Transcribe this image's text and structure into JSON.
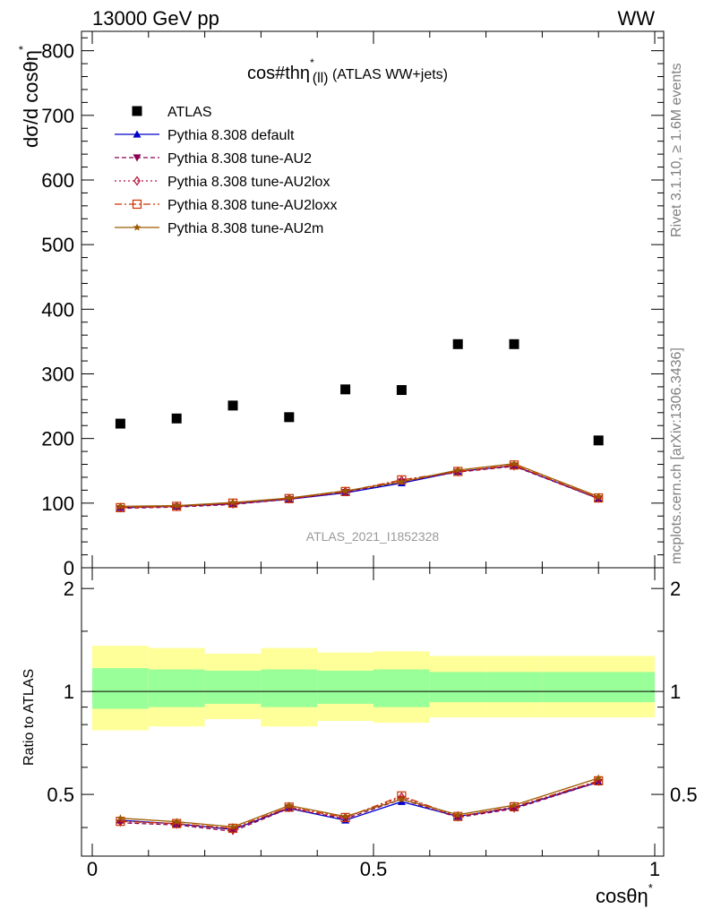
{
  "header": {
    "left": "13000 GeV pp",
    "right": "WW"
  },
  "side_labels": {
    "rivet": "Rivet 3.1.10, ≥ 1.6M events",
    "mcplots": "mcplots.cern.ch [arXiv:1306.3436]"
  },
  "chart_data": [
    {
      "type": "scatter",
      "panel": "main",
      "title": "cos#thη* (ll) (ATLAS WW+jets)",
      "title_main": "cos#thη",
      "title_sup": "*",
      "title_sub": "(ll)",
      "title_rest": " (ATLAS WW+jets)",
      "ylabel": "dσ/d cosθη*",
      "ylabel_main": "dσ/d cosθη",
      "ylabel_sup": "*",
      "watermark": "ATLAS_2021_I1852328",
      "xlim": [
        0,
        1
      ],
      "ylim": [
        0,
        830
      ],
      "yticks": [
        0,
        100,
        200,
        300,
        400,
        500,
        600,
        700,
        800
      ],
      "ytick_labels": [
        "0",
        "100",
        "200",
        "300",
        "400",
        "500",
        "600",
        "700",
        "800"
      ],
      "legend_position": "top-left",
      "bins": [
        [
          0,
          0.1
        ],
        [
          0.1,
          0.2
        ],
        [
          0.2,
          0.3
        ],
        [
          0.3,
          0.4
        ],
        [
          0.4,
          0.5
        ],
        [
          0.5,
          0.6
        ],
        [
          0.6,
          0.7
        ],
        [
          0.7,
          0.8
        ],
        [
          0.8,
          1.0
        ]
      ],
      "x": [
        0.05,
        0.15,
        0.25,
        0.35,
        0.45,
        0.55,
        0.65,
        0.75,
        0.9
      ],
      "series": [
        {
          "name": "ATLAS",
          "color": "#000000",
          "marker": "square",
          "dash": "",
          "values": [
            223,
            231,
            251,
            233,
            276,
            275,
            346,
            346,
            197
          ]
        },
        {
          "name": "Pythia 8.308 default",
          "color": "#0000cc",
          "marker": "triangle-up",
          "dash": "",
          "values": [
            93,
            95,
            99,
            106,
            116,
            131,
            149,
            158,
            107
          ]
        },
        {
          "name": "Pythia 8.308 tune-AU2",
          "color": "#8b0050",
          "marker": "triangle-down",
          "dash": "5,3",
          "values": [
            92,
            94,
            98,
            106,
            117,
            133,
            148,
            157,
            107
          ]
        },
        {
          "name": "Pythia 8.308 tune-AU2lox",
          "color": "#b0103a",
          "marker": "diamond-open",
          "dash": "2,3",
          "values": [
            93,
            95,
            99,
            107,
            118,
            135,
            149,
            158,
            108
          ]
        },
        {
          "name": "Pythia 8.308 tune-AU2loxx",
          "color": "#cc3300",
          "marker": "square-open",
          "dash": "8,3,2,3",
          "values": [
            93,
            95,
            100,
            107,
            118,
            136,
            149,
            159,
            108
          ]
        },
        {
          "name": "Pythia 8.308 tune-AU2m",
          "color": "#9c5a00",
          "marker": "star",
          "dash": "",
          "values": [
            95,
            96,
            101,
            108,
            119,
            133,
            151,
            161,
            110
          ]
        }
      ]
    },
    {
      "type": "line",
      "panel": "ratio",
      "ylabel": "Ratio to ATLAS",
      "xlabel": "cosθη*",
      "xlabel_main": "cosθη",
      "xlabel_sup": "*",
      "xlim": [
        0,
        1
      ],
      "ylim": [
        0.33,
        2.3
      ],
      "yticks": [
        0.5,
        1,
        2
      ],
      "ytick_labels": [
        "0.5",
        "1",
        "2"
      ],
      "xticks": [
        0,
        0.5,
        1
      ],
      "xtick_labels": [
        "0",
        "0.5",
        "1"
      ],
      "band_colors": {
        "inner": "#99ff99",
        "outer": "#ffff99"
      },
      "bands": {
        "inner_lo": [
          0.89,
          0.9,
          0.92,
          0.9,
          0.92,
          0.9,
          0.93,
          0.93,
          0.93
        ],
        "inner_hi": [
          1.17,
          1.16,
          1.15,
          1.16,
          1.15,
          1.16,
          1.14,
          1.14,
          1.14
        ],
        "outer_lo": [
          0.77,
          0.79,
          0.83,
          0.79,
          0.82,
          0.81,
          0.84,
          0.84,
          0.84
        ],
        "outer_hi": [
          1.36,
          1.34,
          1.29,
          1.34,
          1.3,
          1.31,
          1.27,
          1.27,
          1.27
        ]
      },
      "x": [
        0.05,
        0.15,
        0.25,
        0.35,
        0.45,
        0.55,
        0.65,
        0.75,
        0.9
      ],
      "series": [
        {
          "name": "Pythia 8.308 default",
          "color": "#0000cc",
          "marker": "triangle-up",
          "dash": "",
          "values": [
            0.42,
            0.41,
            0.395,
            0.455,
            0.42,
            0.476,
            0.431,
            0.457,
            0.543
          ]
        },
        {
          "name": "Pythia 8.308 tune-AU2",
          "color": "#8b0050",
          "marker": "triangle-down",
          "dash": "5,3",
          "values": [
            0.413,
            0.407,
            0.39,
            0.455,
            0.424,
            0.484,
            0.428,
            0.454,
            0.543
          ]
        },
        {
          "name": "Pythia 8.308 tune-AU2lox",
          "color": "#b0103a",
          "marker": "diamond-open",
          "dash": "2,3",
          "values": [
            0.417,
            0.411,
            0.394,
            0.459,
            0.428,
            0.491,
            0.431,
            0.457,
            0.548
          ]
        },
        {
          "name": "Pythia 8.308 tune-AU2loxx",
          "color": "#cc3300",
          "marker": "square-open",
          "dash": "8,3,2,3",
          "values": [
            0.417,
            0.411,
            0.398,
            0.459,
            0.428,
            0.495,
            0.431,
            0.46,
            0.548
          ]
        },
        {
          "name": "Pythia 8.308 tune-AU2m",
          "color": "#9c5a00",
          "marker": "star",
          "dash": "",
          "values": [
            0.426,
            0.416,
            0.402,
            0.464,
            0.431,
            0.484,
            0.436,
            0.465,
            0.558
          ]
        }
      ]
    }
  ]
}
